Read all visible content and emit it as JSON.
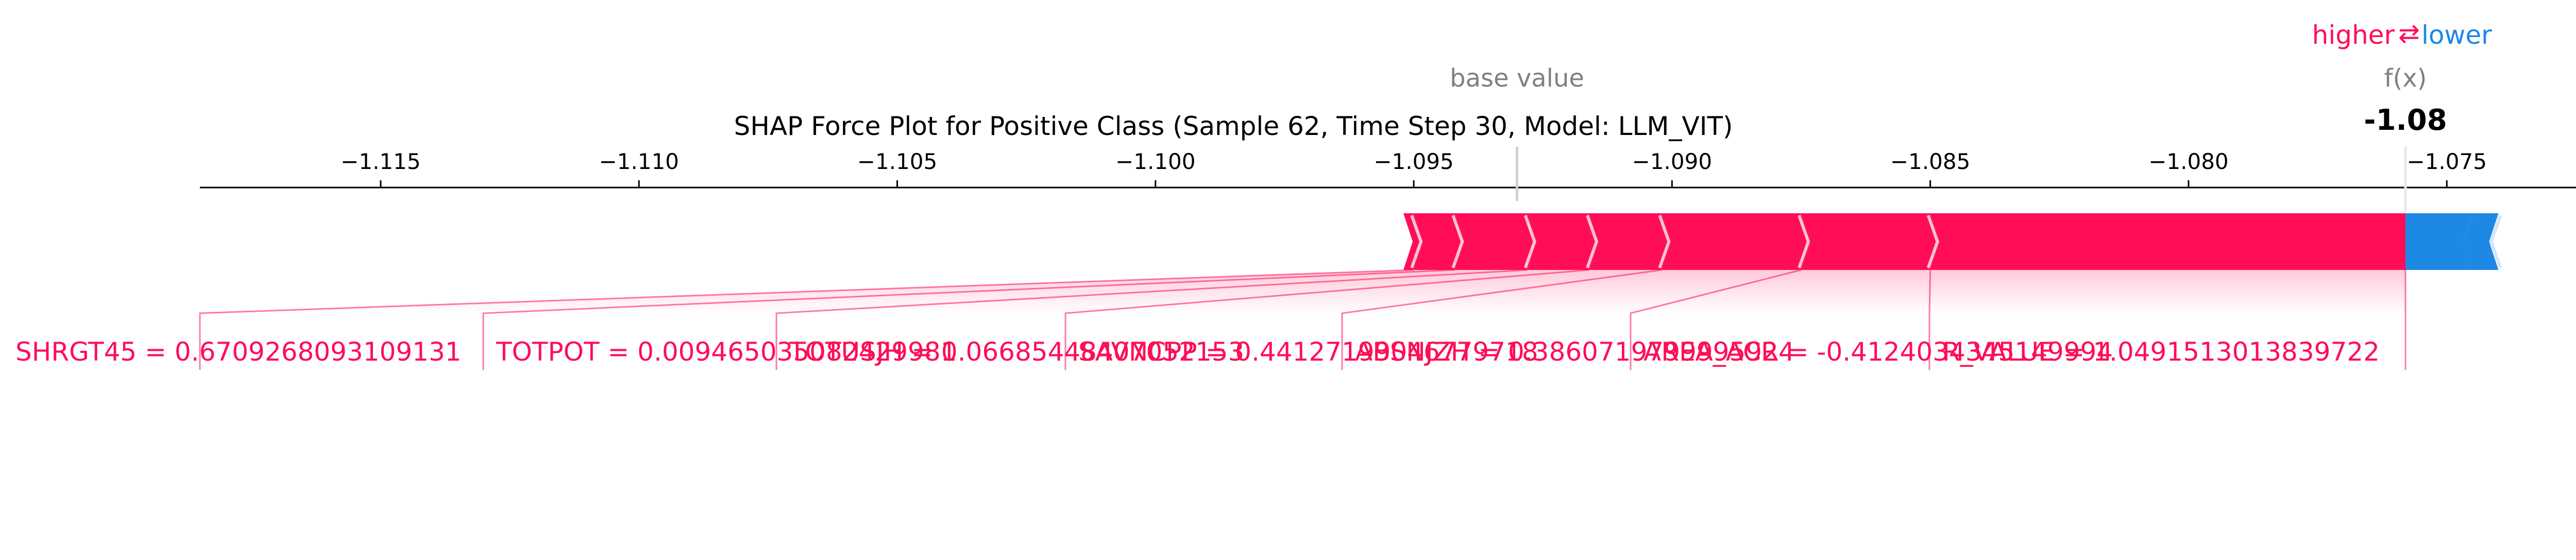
{
  "chart_data": {
    "type": "force",
    "title": "SHAP Force Plot for Positive Class (Sample 62, Time Step 30, Model: LLM_VIT)",
    "legend": {
      "higher": "higher",
      "arrow": "⇄",
      "lower": "lower"
    },
    "base_value_label": "base value",
    "base_value": -1.093,
    "output_label": "f(x)",
    "output_value": -1.0758,
    "output_value_text": "-1.08",
    "xlim": [
      -1.1185,
      -1.072
    ],
    "ticks": [
      {
        "value": -1.115,
        "label": "−1.115"
      },
      {
        "value": -1.11,
        "label": "−1.110"
      },
      {
        "value": -1.105,
        "label": "−1.105"
      },
      {
        "value": -1.1,
        "label": "−1.100"
      },
      {
        "value": -1.095,
        "label": "−1.095"
      },
      {
        "value": -1.09,
        "label": "−1.090"
      },
      {
        "value": -1.085,
        "label": "−1.085"
      },
      {
        "value": -1.08,
        "label": "−1.080"
      },
      {
        "value": -1.075,
        "label": "−1.075"
      }
    ],
    "positive_segments": [
      {
        "label": "R_VALUE = 1.0491513013839722",
        "start": -1.085,
        "end": -1.0758
      },
      {
        "label": "AREA_ACR = -0.4124034345149994",
        "start": -1.0875,
        "end": -1.085
      },
      {
        "label": "ABSNJZH = 0.3860719799995924",
        "start": -1.0902,
        "end": -1.0875
      },
      {
        "label": "SAVNCPP = 0.44127199046779718",
        "start": -1.0916,
        "end": -1.0902
      },
      {
        "label": "TOTUSJH = 0.06685448407052153",
        "start": -1.0928,
        "end": -1.0916
      },
      {
        "label": "TOTPOT = 0.009465035082429981",
        "start": -1.0942,
        "end": -1.0928
      },
      {
        "label": "SHRGT45 = 0.6709268093109131",
        "start": -1.095,
        "end": -1.0942
      }
    ],
    "positive_small_end": -1.0952,
    "negative_segments": [
      {
        "start": -1.0758,
        "end": -1.0745
      },
      {
        "start": -1.0745,
        "end": -1.074
      }
    ],
    "colors": {
      "positive": "#ff0d57",
      "negative": "#1e88e5",
      "positive_light": "#ffc3d5",
      "negative_light": "#d1e6fa",
      "text_gray": "#808080"
    }
  }
}
